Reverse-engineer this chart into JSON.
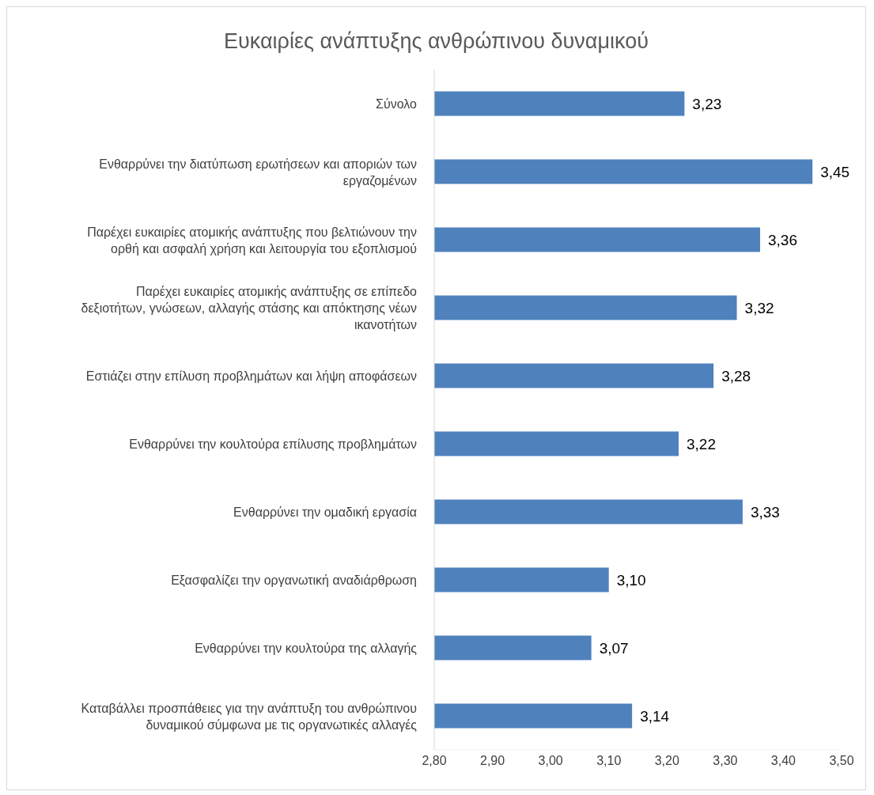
{
  "chart_data": {
    "type": "bar",
    "orientation": "horizontal",
    "title": "Ευκαιρίες ανάπτυξης ανθρώπινου δυναμικού",
    "categories": [
      "Σύνολο",
      "Ενθαρρύνει την διατύπωση ερωτήσεων και αποριών των εργαζομένων",
      "Παρέχει ευκαιρίες ατομικής ανάπτυξης που βελτιώνουν την ορθή και ασφαλή χρήση και λειτουργία του εξοπλισμού",
      "Παρέχει ευκαιρίες ατομικής ανάπτυξης σε επίπεδο δεξιοτήτων, γνώσεων, αλλαγής στάσης και απόκτησης νέων ικανοτήτων",
      "Εστιάζει στην επίλυση προβλημάτων και λήψη αποφάσεων",
      "Ενθαρρύνει την κουλτούρα επίλυσης προβλημάτων",
      "Ενθαρρύνει την ομαδική εργασία",
      "Εξασφαλίζει την οργανωτική αναδιάρθρωση",
      "Ενθαρρύνει την κουλτούρα της αλλαγής",
      "Καταβάλλει προσπάθειες για την ανάπτυξη του ανθρώπινου δυναμικού σύμφωνα με τις οργανωτικές αλλαγές"
    ],
    "values": [
      3.23,
      3.45,
      3.36,
      3.32,
      3.28,
      3.22,
      3.33,
      3.1,
      3.07,
      3.14
    ],
    "value_labels": [
      "3,23",
      "3,45",
      "3,36",
      "3,32",
      "3,28",
      "3,22",
      "3,33",
      "3,10",
      "3,07",
      "3,14"
    ],
    "color": "#4f81bd",
    "xlim": [
      2.8,
      3.5
    ],
    "xticks": [
      {
        "value": 2.8,
        "label": "2,80"
      },
      {
        "value": 2.9,
        "label": "2,90"
      },
      {
        "value": 3.0,
        "label": "3,00"
      },
      {
        "value": 3.1,
        "label": "3,10"
      },
      {
        "value": 3.2,
        "label": "3,20"
      },
      {
        "value": 3.3,
        "label": "3,30"
      },
      {
        "value": 3.4,
        "label": "3,40"
      },
      {
        "value": 3.5,
        "label": "3,50"
      }
    ],
    "grid": false,
    "legend": false
  }
}
